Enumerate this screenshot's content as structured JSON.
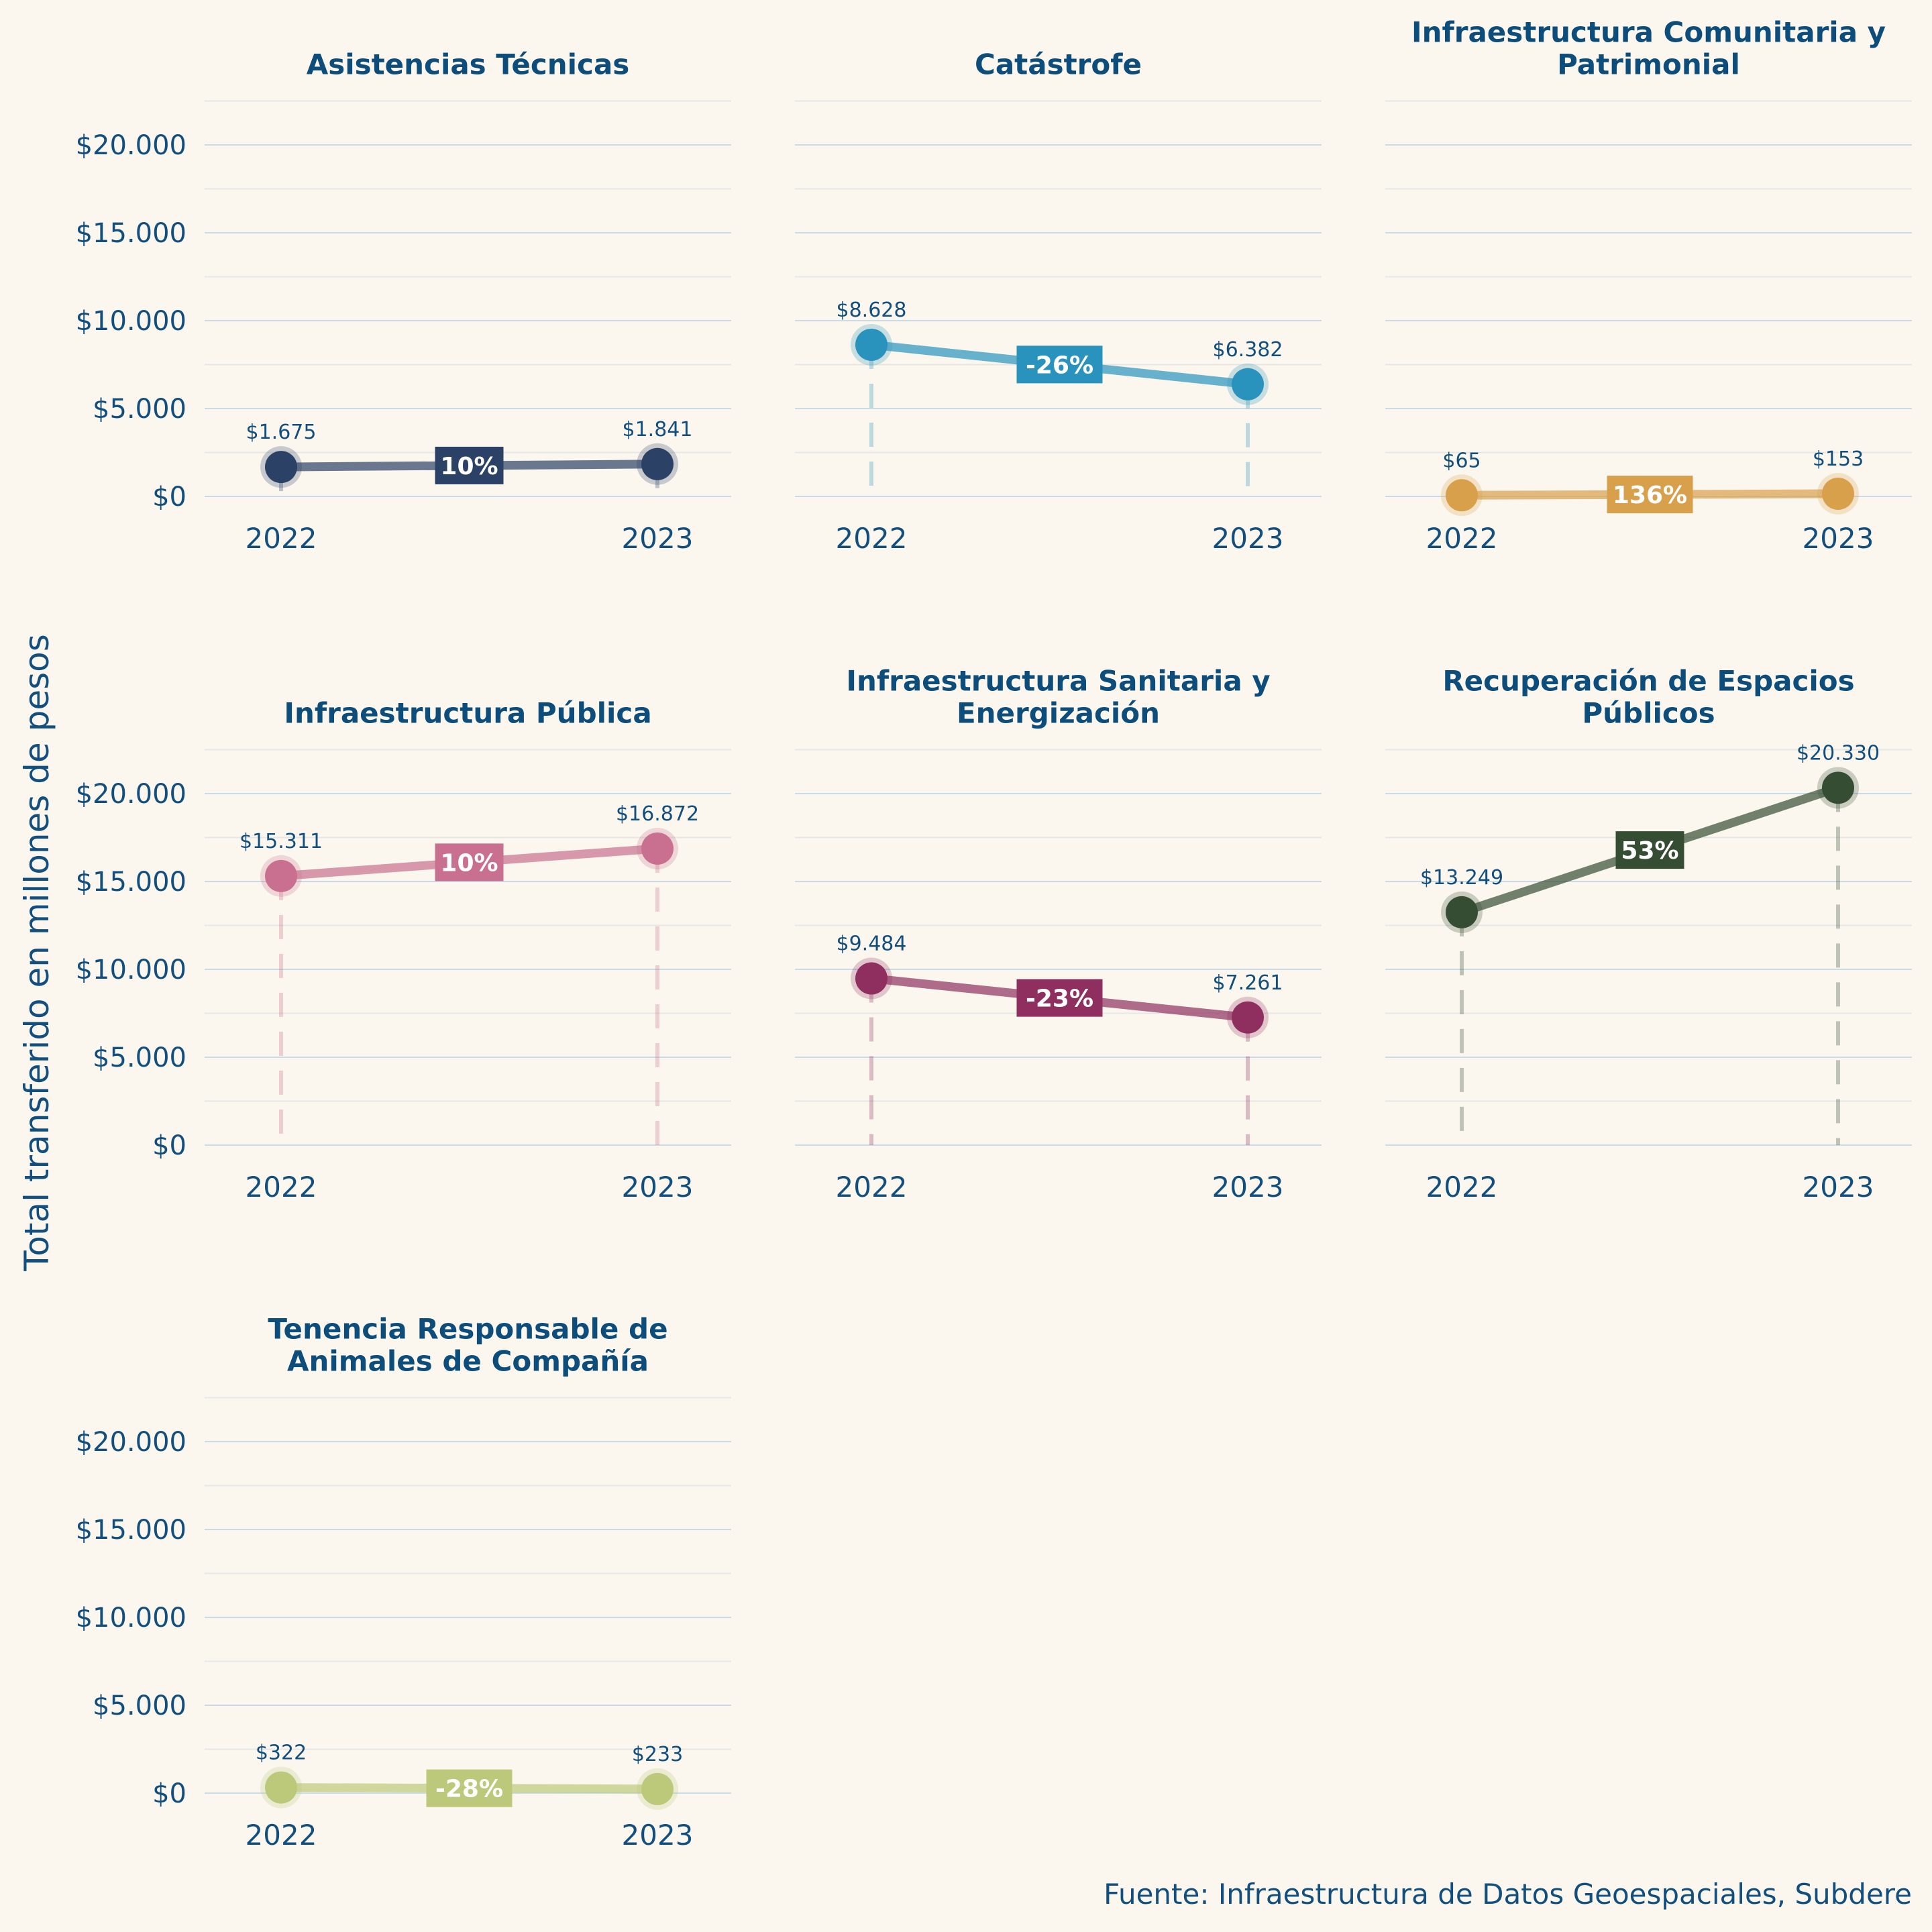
{
  "chart_data": {
    "type": "line",
    "layout": "small-multiples",
    "ylabel": "Total transferido en millones de pesos",
    "caption": "Fuente: Infraestructura de Datos Geoespaciales, Subdere",
    "x": [
      "2022",
      "2023"
    ],
    "ylim": [
      0,
      20000
    ],
    "yticks": [
      0,
      5000,
      10000,
      15000,
      20000
    ],
    "ytick_labels": [
      "$0",
      "$5.000",
      "$10.000",
      "$15.000",
      "$20.000"
    ],
    "grid": true,
    "panels": [
      {
        "title": [
          "Asistencias Técnicas"
        ],
        "color": "#2b4166",
        "values": [
          1675,
          1841
        ],
        "value_labels": [
          "$1.675",
          "$1.841"
        ],
        "change_label": "10%",
        "show_yaxis": true
      },
      {
        "title": [
          "Catástrofe"
        ],
        "color": "#2a93bd",
        "values": [
          8628,
          6382
        ],
        "value_labels": [
          "$8.628",
          "$6.382"
        ],
        "change_label": "-26%",
        "show_yaxis": false
      },
      {
        "title": [
          "Infraestructura Comunitaria y",
          "Patrimonial"
        ],
        "color": "#d9a04b",
        "values": [
          65,
          153
        ],
        "value_labels": [
          "$65",
          "$153"
        ],
        "change_label": "136%",
        "show_yaxis": false
      },
      {
        "title": [
          "Infraestructura Pública"
        ],
        "color": "#c96f8f",
        "values": [
          15311,
          16872
        ],
        "value_labels": [
          "$15.311",
          "$16.872"
        ],
        "change_label": "10%",
        "show_yaxis": true
      },
      {
        "title": [
          "Infraestructura Sanitaria y",
          "Energización"
        ],
        "color": "#8f2f5f",
        "values": [
          9484,
          7261
        ],
        "value_labels": [
          "$9.484",
          "$7.261"
        ],
        "change_label": "-23%",
        "show_yaxis": false
      },
      {
        "title": [
          "Recuperación de Espacios",
          "Públicos"
        ],
        "color": "#354d33",
        "values": [
          13249,
          20330
        ],
        "value_labels": [
          "$13.249",
          "$20.330"
        ],
        "change_label": "53%",
        "show_yaxis": false
      },
      {
        "title": [
          "Tenencia Responsable de",
          "Animales de Compañía"
        ],
        "color": "#bcc97a",
        "values": [
          322,
          233
        ],
        "value_labels": [
          "$322",
          "$233"
        ],
        "change_label": "-28%",
        "show_yaxis": true
      }
    ]
  }
}
